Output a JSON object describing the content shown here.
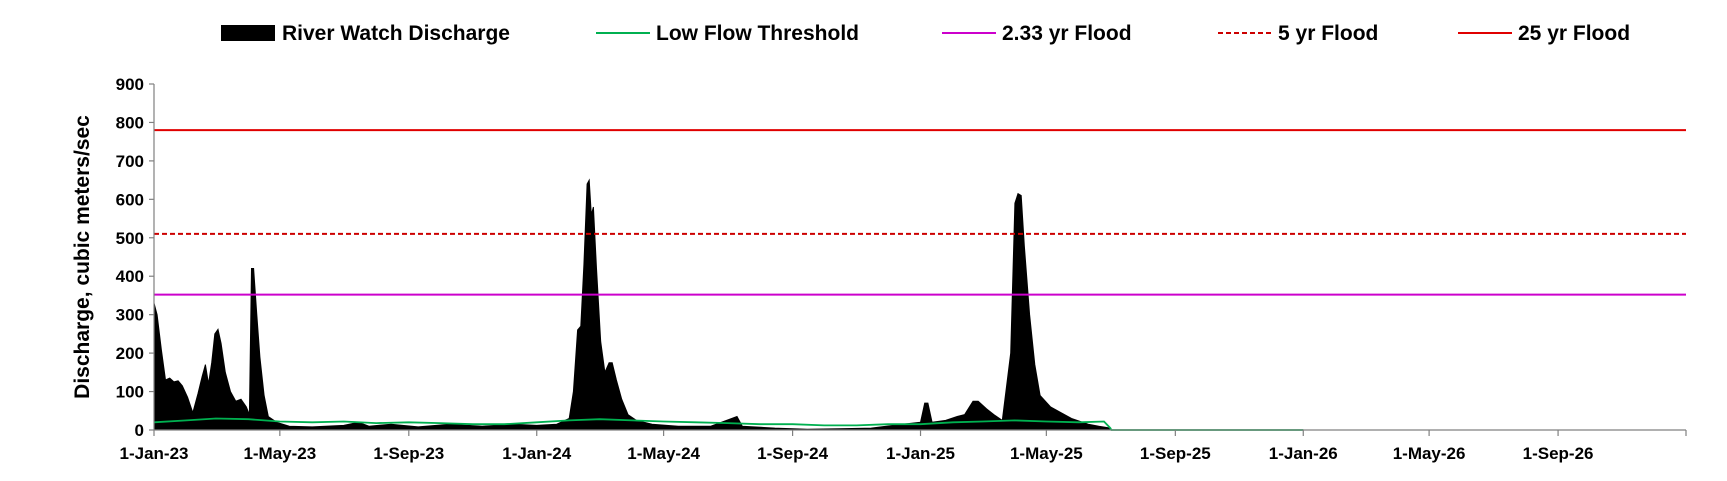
{
  "chart_data": {
    "type": "area",
    "title": "",
    "ylabel": "Discharge, cubic meters/sec",
    "xlabel": "",
    "ylim": [
      0,
      900
    ],
    "yticks": [
      0,
      100,
      200,
      300,
      400,
      500,
      600,
      700,
      800,
      900
    ],
    "xlim": [
      "2023-01-01",
      "2027-01-01"
    ],
    "xticks": [
      {
        "date": "2023-01-01",
        "label": "1-Jan-23"
      },
      {
        "date": "2023-05-01",
        "label": "1-May-23"
      },
      {
        "date": "2023-09-01",
        "label": "1-Sep-23"
      },
      {
        "date": "2024-01-01",
        "label": "1-Jan-24"
      },
      {
        "date": "2024-05-01",
        "label": "1-May-24"
      },
      {
        "date": "2024-09-01",
        "label": "1-Sep-24"
      },
      {
        "date": "2025-01-01",
        "label": "1-Jan-25"
      },
      {
        "date": "2025-05-01",
        "label": "1-May-25"
      },
      {
        "date": "2025-09-01",
        "label": "1-Sep-25"
      },
      {
        "date": "2026-01-01",
        "label": "1-Jan-26"
      },
      {
        "date": "2026-05-01",
        "label": "1-May-26"
      },
      {
        "date": "2026-09-01",
        "label": "1-Sep-26"
      }
    ],
    "grid": false,
    "legend_position": "top",
    "series": [
      {
        "name": "River Watch Discharge",
        "style": "filled-area",
        "color": "#000000",
        "points": [
          [
            "2023-01-01",
            330
          ],
          [
            "2023-01-04",
            300
          ],
          [
            "2023-01-08",
            210
          ],
          [
            "2023-01-12",
            130
          ],
          [
            "2023-01-16",
            135
          ],
          [
            "2023-01-20",
            125
          ],
          [
            "2023-01-24",
            128
          ],
          [
            "2023-01-28",
            115
          ],
          [
            "2023-02-02",
            85
          ],
          [
            "2023-02-07",
            45
          ],
          [
            "2023-02-12",
            95
          ],
          [
            "2023-02-16",
            140
          ],
          [
            "2023-02-19",
            170
          ],
          [
            "2023-02-22",
            120
          ],
          [
            "2023-02-25",
            175
          ],
          [
            "2023-02-28",
            250
          ],
          [
            "2023-03-03",
            262
          ],
          [
            "2023-03-06",
            225
          ],
          [
            "2023-03-10",
            150
          ],
          [
            "2023-03-15",
            100
          ],
          [
            "2023-03-20",
            75
          ],
          [
            "2023-03-25",
            80
          ],
          [
            "2023-03-30",
            60
          ],
          [
            "2023-04-02",
            40
          ],
          [
            "2023-04-04",
            420
          ],
          [
            "2023-04-06",
            420
          ],
          [
            "2023-04-09",
            300
          ],
          [
            "2023-04-12",
            190
          ],
          [
            "2023-04-16",
            90
          ],
          [
            "2023-04-20",
            35
          ],
          [
            "2023-04-28",
            20
          ],
          [
            "2023-05-10",
            10
          ],
          [
            "2023-06-01",
            8
          ],
          [
            "2023-07-01",
            12
          ],
          [
            "2023-07-15",
            20
          ],
          [
            "2023-07-25",
            10
          ],
          [
            "2023-08-15",
            15
          ],
          [
            "2023-09-10",
            8
          ],
          [
            "2023-10-10",
            15
          ],
          [
            "2023-11-10",
            10
          ],
          [
            "2023-12-10",
            15
          ],
          [
            "2024-01-01",
            12
          ],
          [
            "2024-01-20",
            15
          ],
          [
            "2024-02-01",
            30
          ],
          [
            "2024-02-05",
            100
          ],
          [
            "2024-02-09",
            260
          ],
          [
            "2024-02-12",
            270
          ],
          [
            "2024-02-15",
            430
          ],
          [
            "2024-02-18",
            640
          ],
          [
            "2024-02-20",
            650
          ],
          [
            "2024-02-22",
            560
          ],
          [
            "2024-02-24",
            580
          ],
          [
            "2024-02-27",
            420
          ],
          [
            "2024-03-02",
            230
          ],
          [
            "2024-03-06",
            150
          ],
          [
            "2024-03-10",
            175
          ],
          [
            "2024-03-13",
            175
          ],
          [
            "2024-03-17",
            130
          ],
          [
            "2024-03-22",
            80
          ],
          [
            "2024-03-28",
            40
          ],
          [
            "2024-04-05",
            25
          ],
          [
            "2024-04-20",
            15
          ],
          [
            "2024-05-15",
            10
          ],
          [
            "2024-06-15",
            10
          ],
          [
            "2024-07-10",
            35
          ],
          [
            "2024-07-15",
            10
          ],
          [
            "2024-08-15",
            5
          ],
          [
            "2024-09-15",
            2
          ],
          [
            "2024-10-15",
            3
          ],
          [
            "2024-11-15",
            5
          ],
          [
            "2024-12-15",
            15
          ],
          [
            "2025-01-01",
            20
          ],
          [
            "2025-01-05",
            70
          ],
          [
            "2025-01-08",
            70
          ],
          [
            "2025-01-12",
            20
          ],
          [
            "2025-01-25",
            25
          ],
          [
            "2025-02-05",
            35
          ],
          [
            "2025-02-12",
            40
          ],
          [
            "2025-02-20",
            75
          ],
          [
            "2025-02-25",
            75
          ],
          [
            "2025-03-05",
            55
          ],
          [
            "2025-03-12",
            40
          ],
          [
            "2025-03-20",
            25
          ],
          [
            "2025-03-28",
            200
          ],
          [
            "2025-04-01",
            590
          ],
          [
            "2025-04-04",
            615
          ],
          [
            "2025-04-07",
            610
          ],
          [
            "2025-04-10",
            480
          ],
          [
            "2025-04-15",
            300
          ],
          [
            "2025-04-20",
            170
          ],
          [
            "2025-04-25",
            90
          ],
          [
            "2025-05-05",
            60
          ],
          [
            "2025-05-15",
            45
          ],
          [
            "2025-05-25",
            30
          ],
          [
            "2025-06-10",
            15
          ],
          [
            "2025-06-20",
            10
          ],
          [
            "2025-07-01",
            5
          ]
        ]
      },
      {
        "name": "Low Flow Threshold",
        "style": "line",
        "color": "#00b050",
        "points": [
          [
            "2023-01-01",
            20
          ],
          [
            "2023-02-01",
            25
          ],
          [
            "2023-03-01",
            30
          ],
          [
            "2023-04-01",
            28
          ],
          [
            "2023-05-01",
            22
          ],
          [
            "2023-06-01",
            20
          ],
          [
            "2023-07-01",
            22
          ],
          [
            "2023-08-01",
            18
          ],
          [
            "2023-09-01",
            20
          ],
          [
            "2023-10-01",
            18
          ],
          [
            "2023-11-01",
            15
          ],
          [
            "2023-12-01",
            15
          ],
          [
            "2024-01-01",
            20
          ],
          [
            "2024-02-01",
            25
          ],
          [
            "2024-03-01",
            28
          ],
          [
            "2024-04-01",
            25
          ],
          [
            "2024-05-01",
            22
          ],
          [
            "2024-06-01",
            20
          ],
          [
            "2024-07-01",
            18
          ],
          [
            "2024-08-01",
            15
          ],
          [
            "2024-09-01",
            15
          ],
          [
            "2024-10-01",
            12
          ],
          [
            "2024-11-01",
            12
          ],
          [
            "2024-12-01",
            15
          ],
          [
            "2025-01-01",
            15
          ],
          [
            "2025-02-01",
            20
          ],
          [
            "2025-03-01",
            22
          ],
          [
            "2025-04-01",
            25
          ],
          [
            "2025-05-01",
            22
          ],
          [
            "2025-06-01",
            20
          ],
          [
            "2025-06-25",
            22
          ],
          [
            "2025-07-01",
            5
          ],
          [
            "2025-07-02",
            0
          ],
          [
            "2026-01-01",
            0
          ]
        ]
      },
      {
        "name": "2.33 yr Flood",
        "style": "hline",
        "color": "#cc00cc",
        "value": 352
      },
      {
        "name": "5 yr Flood",
        "style": "dashed-hline",
        "color": "#cc0000",
        "value": 510
      },
      {
        "name": "25 yr Flood",
        "style": "hline",
        "color": "#e00000",
        "value": 780
      }
    ]
  }
}
